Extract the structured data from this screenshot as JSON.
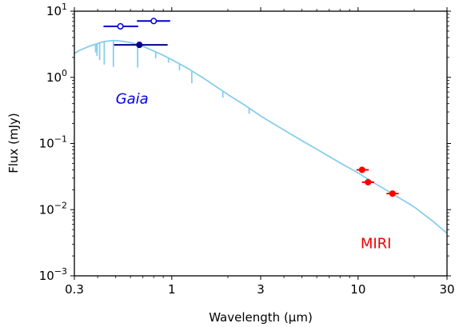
{
  "chart_data": {
    "type": "scatter",
    "xlabel": "Wavelength (μm)",
    "ylabel": "Flux (mJy)",
    "xscale": "log",
    "yscale": "log",
    "xlim": [
      0.3,
      30
    ],
    "ylim": [
      0.001,
      10
    ],
    "grid": false,
    "x_ticks": [
      {
        "value": 0.3,
        "label": "0.3"
      },
      {
        "value": 1,
        "label": "1"
      },
      {
        "value": 3,
        "label": "3"
      },
      {
        "value": 10,
        "label": "10"
      },
      {
        "value": 30,
        "label": "30"
      }
    ],
    "y_ticks": [
      {
        "value": 0.001,
        "base": "10",
        "exp": "−3"
      },
      {
        "value": 0.01,
        "base": "10",
        "exp": "−2"
      },
      {
        "value": 0.1,
        "base": "10",
        "exp": "−1"
      },
      {
        "value": 1,
        "base": "10",
        "exp": "0"
      },
      {
        "value": 10,
        "base": "10",
        "exp": "1"
      }
    ],
    "annotations": [
      {
        "text": "Gaia",
        "x": 0.5,
        "y": 0.4,
        "color": "#0000dd",
        "italic": true
      },
      {
        "text": "MIRI",
        "x": 10.3,
        "y": 0.0026,
        "color": "#ee0000",
        "italic": false
      }
    ],
    "series": [
      {
        "kind": "line",
        "color": "#87ceeb",
        "points": [
          [
            0.3,
            2.3
          ],
          [
            0.32,
            2.55
          ],
          [
            0.34,
            2.75
          ],
          [
            0.36,
            2.95
          ],
          [
            0.38,
            3.1
          ],
          [
            0.4,
            3.25
          ],
          [
            0.42,
            3.4
          ],
          [
            0.44,
            3.5
          ],
          [
            0.46,
            3.55
          ],
          [
            0.48,
            3.6
          ],
          [
            0.5,
            3.6
          ],
          [
            0.55,
            3.5
          ],
          [
            0.6,
            3.35
          ],
          [
            0.65,
            3.15
          ],
          [
            0.7,
            2.95
          ],
          [
            0.8,
            2.5
          ],
          [
            0.9,
            2.15
          ],
          [
            1.0,
            1.85
          ],
          [
            1.2,
            1.4
          ],
          [
            1.5,
            0.95
          ],
          [
            2.0,
            0.55
          ],
          [
            2.5,
            0.37
          ],
          [
            3.0,
            0.26
          ],
          [
            4.0,
            0.16
          ],
          [
            5.0,
            0.11
          ],
          [
            6.0,
            0.082
          ],
          [
            8.0,
            0.051
          ],
          [
            10.0,
            0.036
          ],
          [
            12.0,
            0.026
          ],
          [
            15.0,
            0.018
          ],
          [
            20.0,
            0.011
          ],
          [
            25.0,
            0.0068
          ],
          [
            30.0,
            0.0044
          ]
        ],
        "absorption_lines": [
          {
            "x": 0.39,
            "depth": 0.25
          },
          {
            "x": 0.397,
            "depth": 0.35
          },
          {
            "x": 0.41,
            "depth": 0.45
          },
          {
            "x": 0.434,
            "depth": 0.55
          },
          {
            "x": 0.486,
            "depth": 0.6
          },
          {
            "x": 0.656,
            "depth": 0.55
          },
          {
            "x": 0.82,
            "depth": 0.2
          },
          {
            "x": 0.96,
            "depth": 0.15
          },
          {
            "x": 1.1,
            "depth": 0.2
          },
          {
            "x": 1.28,
            "depth": 0.35
          },
          {
            "x": 1.88,
            "depth": 0.2
          },
          {
            "x": 2.6,
            "depth": 0.18
          }
        ]
      },
      {
        "kind": "errorbar",
        "color": "#0000cc",
        "marker": "open-circle",
        "points": [
          {
            "x": 0.53,
            "y": 5.9,
            "xerr": [
              0.43,
              0.66
            ]
          },
          {
            "x": 0.8,
            "y": 7.1,
            "xerr": [
              0.65,
              0.98
            ]
          }
        ]
      },
      {
        "kind": "errorbar",
        "color": "#00008b",
        "marker": "filled-circle",
        "points": [
          {
            "x": 0.67,
            "y": 3.1,
            "xerr": [
              0.49,
              0.95
            ]
          }
        ]
      },
      {
        "kind": "errorbar",
        "color": "#ff0000",
        "marker": "filled-circle",
        "points": [
          {
            "x": 10.5,
            "y": 0.04,
            "xerr": [
              9.8,
              11.4
            ]
          },
          {
            "x": 11.3,
            "y": 0.026,
            "xerr": [
              10.5,
              12.2
            ]
          },
          {
            "x": 15.3,
            "y": 0.0175,
            "xerr": [
              14.2,
              16.5
            ]
          }
        ]
      }
    ]
  }
}
